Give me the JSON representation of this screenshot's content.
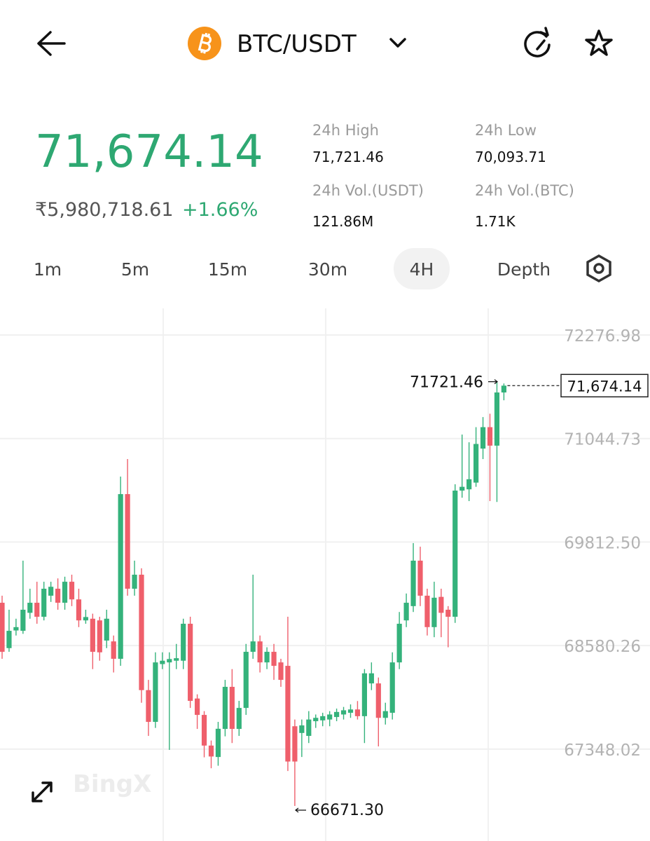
{
  "header": {
    "pair": "BTC/USDT"
  },
  "ticker": {
    "last_price": "71,674.14",
    "inr_price": "₹5,980,718.61",
    "change": "+1.66%",
    "stats": [
      {
        "label": "24h High",
        "value": "71,721.46"
      },
      {
        "label": "24h Low",
        "value": "70,093.71"
      },
      {
        "label": "24h Vol.(USDT)",
        "value": "121.86M"
      },
      {
        "label": "24h Vol.(BTC)",
        "value": "1.71K"
      }
    ]
  },
  "timeframes": {
    "items": [
      "1m",
      "5m",
      "15m",
      "30m",
      "4H",
      "Depth"
    ],
    "selected": 4
  },
  "chart_data": {
    "type": "candlestick",
    "watermark": "BingX",
    "up_color": "#34b27b",
    "down_color": "#ef5f6b",
    "grid": true,
    "ylim": [
      66254,
      72594
    ],
    "yticks": [
      72276.98,
      71044.73,
      {
        "value": 69812.5,
        "label": "69812.50"
      },
      68580.26,
      67348.02
    ],
    "open": [
      69090,
      68550,
      68760,
      68756,
      68970,
      69090,
      68923,
      69174,
      69257,
      69090,
      69340,
      69130,
      68880,
      68900,
      68880,
      68640,
      68630,
      68423,
      70383,
      69257,
      69424,
      68050,
      67672,
      68360,
      68380,
      68400,
      68400,
      68840,
      67950,
      67755,
      67390,
      67254,
      67588,
      68089,
      67588,
      67838,
      68506,
      68630,
      68380,
      68506,
      68380,
      68339,
      67620,
      67540,
      67505,
      67680,
      67690,
      67700,
      67730,
      67760,
      67780,
      67820,
      67740,
      68130,
      68130,
      67720,
      67780,
      68380,
      68880,
      69050,
      69591,
      69174,
      68800,
      69160,
      69007,
      68923,
      70425,
      70440,
      70520,
      70925,
      71180,
      70960,
      71593
    ],
    "high": [
      69174,
      69007,
      68900,
      69591,
      69257,
      69340,
      69340,
      69340,
      69380,
      69400,
      69424,
      69257,
      69007,
      68960,
      68923,
      69007,
      68700,
      70592,
      70800,
      69591,
      69500,
      68172,
      68500,
      68500,
      68500,
      68600,
      68900,
      68923,
      68000,
      67800,
      67450,
      67672,
      68172,
      68300,
      67922,
      68600,
      69424,
      68700,
      68560,
      68600,
      68423,
      68923,
      67700,
      67700,
      67800,
      67760,
      67780,
      67800,
      67830,
      67850,
      67880,
      67920,
      68300,
      68380,
      68200,
      67900,
      68500,
      68980,
      69200,
      69800,
      69757,
      69257,
      69340,
      69257,
      69050,
      70500,
      71092,
      71000,
      71180,
      71300,
      71340,
      71721.46,
      71700
    ],
    "low": [
      68423,
      68506,
      68700,
      68720,
      68900,
      68840,
      68880,
      69100,
      69007,
      69007,
      69050,
      68800,
      68840,
      68300,
      68400,
      68550,
      68260,
      68340,
      69174,
      69174,
      67900,
      67505,
      67600,
      68300,
      67338,
      68300,
      68300,
      67838,
      67588,
      67250,
      67120,
      67150,
      67500,
      67420,
      67505,
      67755,
      68423,
      68260,
      68300,
      68172,
      68089,
      67087,
      66671.3,
      67254,
      67420,
      67600,
      67620,
      67620,
      67680,
      67700,
      67720,
      67700,
      67420,
      68050,
      67380,
      67640,
      67700,
      68300,
      68800,
      68980,
      69050,
      68700,
      68680,
      68680,
      68560,
      68850,
      70340,
      70300,
      70470,
      70800,
      70300,
      70290,
      71500
    ],
    "close": [
      68506,
      68756,
      68800,
      69007,
      69090,
      68923,
      69257,
      69280,
      69090,
      69340,
      69130,
      68880,
      68920,
      68506,
      68500,
      68900,
      68423,
      70383,
      69257,
      69424,
      68050,
      67672,
      68380,
      68400,
      68420,
      68430,
      68840,
      67922,
      67755,
      67390,
      67260,
      67590,
      68089,
      67588,
      67838,
      68506,
      68630,
      68380,
      68506,
      68339,
      68172,
      67200,
      67200,
      67630,
      67700,
      67720,
      67740,
      67760,
      67790,
      67810,
      67820,
      67740,
      68250,
      68250,
      67720,
      67800,
      68380,
      68840,
      69090,
      69591,
      69174,
      68800,
      69150,
      68970,
      68923,
      70425,
      70470,
      70560,
      70980,
      71180,
      70960,
      71593,
      71674.14
    ],
    "high_mark": 71721.46,
    "low_mark": {
      "value": 66671.3,
      "label": "66671.30"
    },
    "last_price": {
      "value": 71674.14,
      "label": "71,674.14"
    }
  }
}
